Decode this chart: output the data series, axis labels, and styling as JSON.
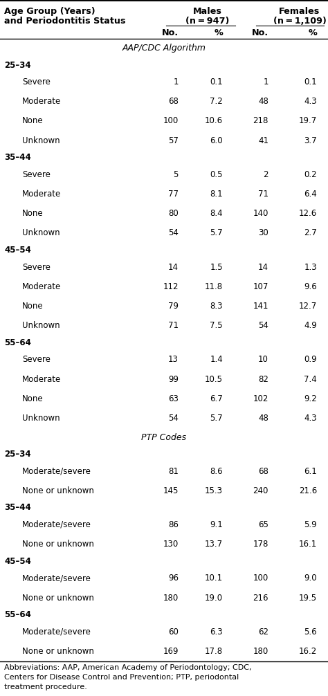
{
  "header_col1_line1": "Age Group (Years)",
  "header_col1_line2": "and Periodontitis Status",
  "header_males_line1": "Males",
  "header_males_line2": "(n = 947)",
  "header_females_line1": "Females",
  "header_females_line2": "(n = 1,109)",
  "subheader_no": "No.",
  "subheader_pct": "%",
  "section1_title": "AAP/CDC Algorithm",
  "section2_title": "PTP Codes",
  "rows": [
    {
      "label": "25–34",
      "indent": 0,
      "m_no": "",
      "m_pct": "",
      "f_no": "",
      "f_pct": ""
    },
    {
      "label": "Severe",
      "indent": 1,
      "m_no": "1",
      "m_pct": "0.1",
      "f_no": "1",
      "f_pct": "0.1"
    },
    {
      "label": "Moderate",
      "indent": 1,
      "m_no": "68",
      "m_pct": "7.2",
      "f_no": "48",
      "f_pct": "4.3"
    },
    {
      "label": "None",
      "indent": 1,
      "m_no": "100",
      "m_pct": "10.6",
      "f_no": "218",
      "f_pct": "19.7"
    },
    {
      "label": "Unknown",
      "indent": 1,
      "m_no": "57",
      "m_pct": "6.0",
      "f_no": "41",
      "f_pct": "3.7"
    },
    {
      "label": "35–44",
      "indent": 0,
      "m_no": "",
      "m_pct": "",
      "f_no": "",
      "f_pct": ""
    },
    {
      "label": "Severe",
      "indent": 1,
      "m_no": "5",
      "m_pct": "0.5",
      "f_no": "2",
      "f_pct": "0.2"
    },
    {
      "label": "Moderate",
      "indent": 1,
      "m_no": "77",
      "m_pct": "8.1",
      "f_no": "71",
      "f_pct": "6.4"
    },
    {
      "label": "None",
      "indent": 1,
      "m_no": "80",
      "m_pct": "8.4",
      "f_no": "140",
      "f_pct": "12.6"
    },
    {
      "label": "Unknown",
      "indent": 1,
      "m_no": "54",
      "m_pct": "5.7",
      "f_no": "30",
      "f_pct": "2.7"
    },
    {
      "label": "45–54",
      "indent": 0,
      "m_no": "",
      "m_pct": "",
      "f_no": "",
      "f_pct": ""
    },
    {
      "label": "Severe",
      "indent": 1,
      "m_no": "14",
      "m_pct": "1.5",
      "f_no": "14",
      "f_pct": "1.3"
    },
    {
      "label": "Moderate",
      "indent": 1,
      "m_no": "112",
      "m_pct": "11.8",
      "f_no": "107",
      "f_pct": "9.6"
    },
    {
      "label": "None",
      "indent": 1,
      "m_no": "79",
      "m_pct": "8.3",
      "f_no": "141",
      "f_pct": "12.7"
    },
    {
      "label": "Unknown",
      "indent": 1,
      "m_no": "71",
      "m_pct": "7.5",
      "f_no": "54",
      "f_pct": "4.9"
    },
    {
      "label": "55–64",
      "indent": 0,
      "m_no": "",
      "m_pct": "",
      "f_no": "",
      "f_pct": ""
    },
    {
      "label": "Severe",
      "indent": 1,
      "m_no": "13",
      "m_pct": "1.4",
      "f_no": "10",
      "f_pct": "0.9"
    },
    {
      "label": "Moderate",
      "indent": 1,
      "m_no": "99",
      "m_pct": "10.5",
      "f_no": "82",
      "f_pct": "7.4"
    },
    {
      "label": "None",
      "indent": 1,
      "m_no": "63",
      "m_pct": "6.7",
      "f_no": "102",
      "f_pct": "9.2"
    },
    {
      "label": "Unknown",
      "indent": 1,
      "m_no": "54",
      "m_pct": "5.7",
      "f_no": "48",
      "f_pct": "4.3"
    },
    {
      "label": "25–34",
      "indent": 0,
      "m_no": "",
      "m_pct": "",
      "f_no": "",
      "f_pct": ""
    },
    {
      "label": "Moderate/severe",
      "indent": 1,
      "m_no": "81",
      "m_pct": "8.6",
      "f_no": "68",
      "f_pct": "6.1"
    },
    {
      "label": "None or unknown",
      "indent": 1,
      "m_no": "145",
      "m_pct": "15.3",
      "f_no": "240",
      "f_pct": "21.6"
    },
    {
      "label": "35–44",
      "indent": 0,
      "m_no": "",
      "m_pct": "",
      "f_no": "",
      "f_pct": ""
    },
    {
      "label": "Moderate/severe",
      "indent": 1,
      "m_no": "86",
      "m_pct": "9.1",
      "f_no": "65",
      "f_pct": "5.9"
    },
    {
      "label": "None or unknown",
      "indent": 1,
      "m_no": "130",
      "m_pct": "13.7",
      "f_no": "178",
      "f_pct": "16.1"
    },
    {
      "label": "45–54",
      "indent": 0,
      "m_no": "",
      "m_pct": "",
      "f_no": "",
      "f_pct": ""
    },
    {
      "label": "Moderate/severe",
      "indent": 1,
      "m_no": "96",
      "m_pct": "10.1",
      "f_no": "100",
      "f_pct": "9.0"
    },
    {
      "label": "None or unknown",
      "indent": 1,
      "m_no": "180",
      "m_pct": "19.0",
      "f_no": "216",
      "f_pct": "19.5"
    },
    {
      "label": "55–64",
      "indent": 0,
      "m_no": "",
      "m_pct": "",
      "f_no": "",
      "f_pct": ""
    },
    {
      "label": "Moderate/severe",
      "indent": 1,
      "m_no": "60",
      "m_pct": "6.3",
      "f_no": "62",
      "f_pct": "5.6"
    },
    {
      "label": "None or unknown",
      "indent": 1,
      "m_no": "169",
      "m_pct": "17.8",
      "f_no": "180",
      "f_pct": "16.2"
    }
  ],
  "footnote": "Abbreviations: AAP, American Academy of Periodontology; CDC,\nCenters for Disease Control and Prevention; PTP, periodontal\ntreatment procedure.",
  "section1_after_row": 20,
  "bg_color": "#ffffff",
  "text_color": "#000000",
  "font_size": 8.5,
  "header_font_size": 9.2
}
